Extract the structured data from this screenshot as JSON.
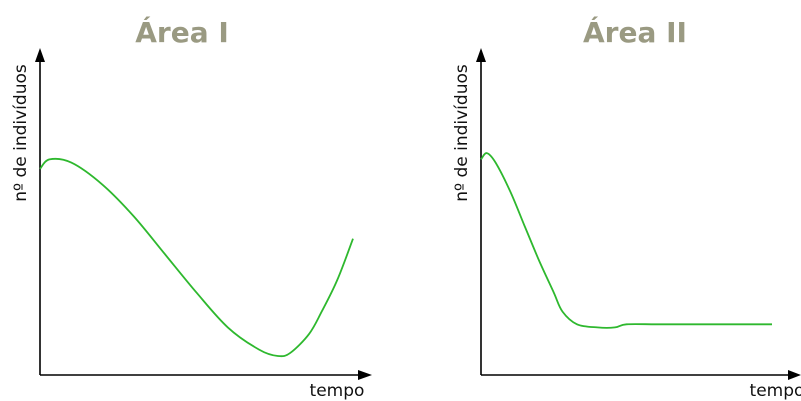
{
  "chart_data": [
    {
      "type": "line",
      "title": "Área I",
      "xlabel": "tempo",
      "ylabel": "nº de indivíduos",
      "series": [
        {
          "color": "#2eb82e",
          "x": [
            0,
            0.03,
            0.1,
            0.2,
            0.3,
            0.4,
            0.5,
            0.6,
            0.7,
            0.76,
            0.8,
            0.86,
            0.9,
            0.95,
            1.0
          ],
          "y": [
            0.65,
            0.68,
            0.67,
            0.6,
            0.5,
            0.38,
            0.26,
            0.15,
            0.08,
            0.06,
            0.07,
            0.13,
            0.2,
            0.3,
            0.43
          ]
        }
      ]
    },
    {
      "type": "line",
      "title": "Área II",
      "xlabel": "tempo",
      "ylabel": "nº de indivíduos",
      "series": [
        {
          "color": "#2eb82e",
          "x": [
            0,
            0.02,
            0.05,
            0.1,
            0.15,
            0.2,
            0.25,
            0.28,
            0.33,
            0.4,
            0.46,
            0.5,
            0.6,
            0.7,
            0.8,
            0.9,
            1.0
          ],
          "y": [
            0.68,
            0.7,
            0.67,
            0.58,
            0.47,
            0.36,
            0.26,
            0.2,
            0.16,
            0.15,
            0.15,
            0.16,
            0.16,
            0.16,
            0.16,
            0.16,
            0.16
          ]
        }
      ]
    }
  ]
}
